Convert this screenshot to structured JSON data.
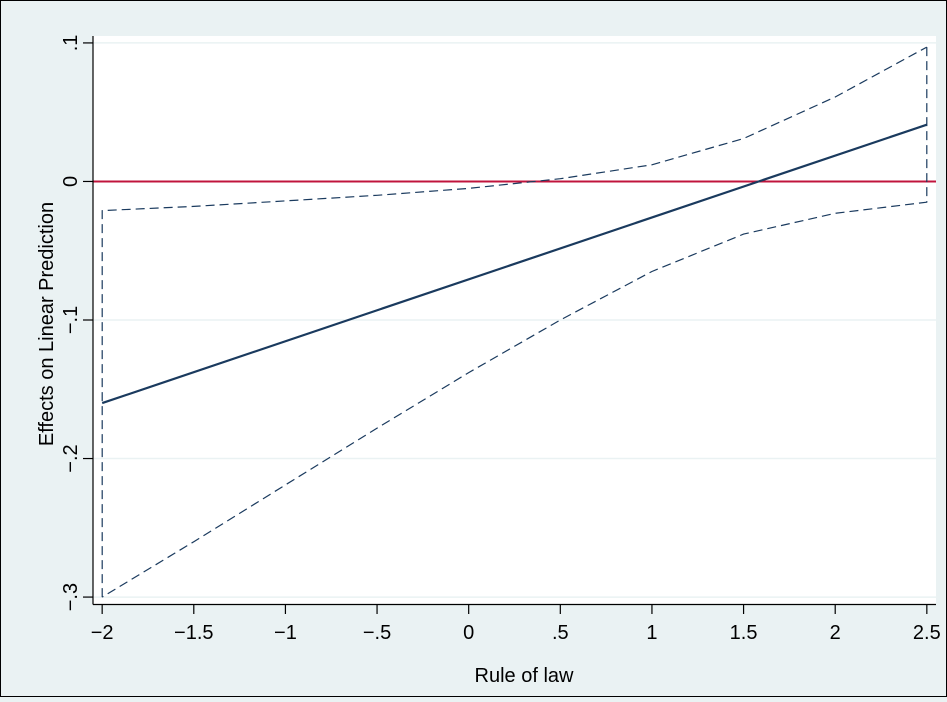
{
  "chart_data": {
    "type": "line",
    "title": "",
    "xlabel": "Rule of law",
    "ylabel": "Effects on Linear Prediction",
    "xlim": [
      -2.05,
      2.55
    ],
    "ylim": [
      -0.305,
      0.105
    ],
    "x_ticks": [
      {
        "value": -2,
        "label": "−2"
      },
      {
        "value": -1.5,
        "label": "−1.5"
      },
      {
        "value": -1,
        "label": "−1"
      },
      {
        "value": -0.5,
        "label": "−.5"
      },
      {
        "value": 0,
        "label": "0"
      },
      {
        "value": 0.5,
        "label": ".5"
      },
      {
        "value": 1,
        "label": "1"
      },
      {
        "value": 1.5,
        "label": "1.5"
      },
      {
        "value": 2,
        "label": "2"
      },
      {
        "value": 2.5,
        "label": "2.5"
      }
    ],
    "y_ticks": [
      {
        "value": -0.3,
        "label": "−.3"
      },
      {
        "value": -0.2,
        "label": "−.2"
      },
      {
        "value": -0.1,
        "label": "−.1"
      },
      {
        "value": 0,
        "label": "0"
      },
      {
        "value": 0.1,
        "label": ".1"
      }
    ],
    "grid": true,
    "reference_line": {
      "y": 0,
      "color": "#c0143c"
    },
    "series": [
      {
        "style": "solid",
        "color": "#1a3a5e",
        "x": [
          -2,
          2.5
        ],
        "y": [
          -0.16,
          0.041
        ]
      },
      {
        "style": "dashed",
        "color": "#1a3a5e",
        "x": [
          -2,
          -2,
          -1.5,
          -1,
          -0.5,
          0,
          0.5,
          1,
          1.5,
          2,
          2.5,
          2.5
        ],
        "y": [
          -0.3,
          -0.021,
          -0.018,
          -0.014,
          -0.01,
          -0.005,
          0.002,
          0.012,
          0.031,
          0.061,
          0.097,
          0.097
        ]
      },
      {
        "style": "dashed",
        "color": "#1a3a5e",
        "x": [
          2.5,
          2.5,
          2,
          1.5,
          1,
          0.5,
          0,
          -0.5,
          -1,
          -1.5,
          -2
        ],
        "y": [
          0.097,
          -0.015,
          -0.023,
          -0.038,
          -0.065,
          -0.1,
          -0.138,
          -0.178,
          -0.219,
          -0.26,
          -0.3
        ]
      }
    ]
  },
  "colors": {
    "background": "#eaf2f3",
    "plot_background": "#ffffff",
    "grid": "#eaf2f3",
    "line": "#1a3a5e",
    "reference": "#c0143c"
  }
}
